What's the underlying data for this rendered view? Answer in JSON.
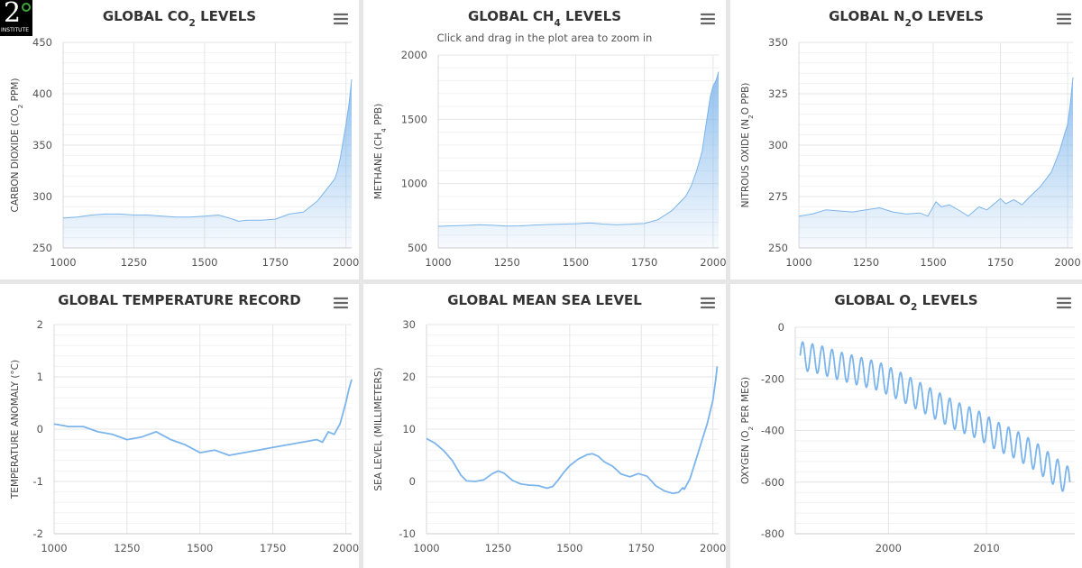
{
  "logo": {
    "number": "2",
    "text": "INSTITUTE"
  },
  "menu_icon": "hamburger-menu-icon",
  "colors": {
    "line": "#7cb5ec",
    "grid": "#e6e6e6",
    "background": "#ffffff"
  },
  "chart_data": [
    {
      "type": "area",
      "title_pre": "GLOBAL CO",
      "title_sub": "2",
      "title_post": " LEVELS",
      "subtitle": "",
      "ylabel_pre": "CARBON DIOXIDE (CO",
      "ylabel_sub": "2",
      "ylabel_post": " PPM)",
      "xlim": [
        1000,
        2020
      ],
      "ylim": [
        250,
        450
      ],
      "xticks": [
        1000,
        1250,
        1500,
        1750,
        2000
      ],
      "yticks": [
        250,
        300,
        350,
        400,
        450
      ],
      "x": [
        1000,
        1050,
        1100,
        1150,
        1200,
        1250,
        1300,
        1350,
        1400,
        1450,
        1500,
        1550,
        1600,
        1620,
        1650,
        1700,
        1750,
        1800,
        1850,
        1900,
        1920,
        1940,
        1960,
        1970,
        1980,
        1990,
        2000,
        2010,
        2020
      ],
      "y": [
        279,
        280,
        282,
        283,
        283,
        282,
        282,
        281,
        280,
        280,
        281,
        282,
        278,
        276,
        277,
        277,
        278,
        283,
        285,
        296,
        303,
        310,
        317,
        325,
        338,
        354,
        370,
        389,
        414
      ]
    },
    {
      "type": "area",
      "title_pre": "GLOBAL CH",
      "title_sub": "4",
      "title_post": " LEVELS",
      "subtitle": "Click and drag in the plot area to zoom in",
      "ylabel_pre": "METHANE (CH",
      "ylabel_sub": "4",
      "ylabel_post": " PPB)",
      "xlim": [
        1000,
        2020
      ],
      "ylim": [
        500,
        2000
      ],
      "xticks": [
        1000,
        1250,
        1500,
        1750,
        2000
      ],
      "yticks": [
        500,
        1000,
        1500,
        2000
      ],
      "x": [
        1000,
        1050,
        1100,
        1150,
        1200,
        1250,
        1300,
        1350,
        1400,
        1450,
        1500,
        1550,
        1600,
        1650,
        1700,
        1750,
        1800,
        1850,
        1900,
        1920,
        1940,
        1960,
        1970,
        1980,
        1990,
        2000,
        2010,
        2020
      ],
      "y": [
        668,
        672,
        675,
        680,
        676,
        670,
        672,
        678,
        682,
        685,
        688,
        694,
        686,
        680,
        685,
        690,
        720,
        790,
        900,
        980,
        1100,
        1250,
        1400,
        1540,
        1680,
        1760,
        1800,
        1870
      ]
    },
    {
      "type": "area",
      "title_pre": "GLOBAL N",
      "title_sub": "2",
      "title_post": "O LEVELS",
      "subtitle": "",
      "ylabel_pre": "NITROUS OXIDE (N",
      "ylabel_sub": "2",
      "ylabel_post": "O PPB)",
      "xlim": [
        1000,
        2020
      ],
      "ylim": [
        250,
        350
      ],
      "xticks": [
        1000,
        1250,
        1500,
        1750,
        2000
      ],
      "yticks": [
        250,
        275,
        300,
        325,
        350
      ],
      "x": [
        1000,
        1050,
        1100,
        1150,
        1200,
        1250,
        1300,
        1350,
        1400,
        1450,
        1480,
        1510,
        1530,
        1560,
        1600,
        1630,
        1670,
        1700,
        1750,
        1770,
        1800,
        1830,
        1860,
        1900,
        1940,
        1970,
        1990,
        2000,
        2010,
        2020
      ],
      "y": [
        265.5,
        266.5,
        268.5,
        268,
        267.5,
        268.5,
        269.5,
        267.5,
        266.5,
        267,
        265.5,
        272.5,
        270,
        271,
        268,
        265.5,
        270,
        268.5,
        274,
        271.5,
        273.5,
        271,
        275,
        280,
        287,
        297,
        306,
        310,
        320,
        333
      ]
    },
    {
      "type": "line",
      "title": "GLOBAL TEMPERATURE RECORD",
      "subtitle": "",
      "ylabel": "TEMPERATURE ANOMALY (°C)",
      "xlim": [
        1000,
        2020
      ],
      "ylim": [
        -2,
        2
      ],
      "xticks": [
        1000,
        1250,
        1500,
        1750,
        2000
      ],
      "yticks": [
        -2,
        -1,
        0,
        1,
        2
      ],
      "x": [
        1000,
        1050,
        1100,
        1150,
        1200,
        1250,
        1300,
        1350,
        1400,
        1450,
        1500,
        1550,
        1600,
        1650,
        1700,
        1750,
        1800,
        1850,
        1900,
        1920,
        1940,
        1960,
        1980,
        1990,
        2000,
        2010,
        2020
      ],
      "y": [
        0.1,
        0.05,
        0.05,
        -0.05,
        -0.1,
        -0.2,
        -0.15,
        -0.05,
        -0.2,
        -0.3,
        -0.45,
        -0.4,
        -0.5,
        -0.45,
        -0.4,
        -0.35,
        -0.3,
        -0.25,
        -0.2,
        -0.25,
        -0.05,
        -0.1,
        0.1,
        0.3,
        0.5,
        0.75,
        0.95
      ]
    },
    {
      "type": "line",
      "title": "GLOBAL MEAN SEA LEVEL",
      "subtitle": "",
      "ylabel": "SEA LEVEL (MILLIMETERS)",
      "xlim": [
        1000,
        2020
      ],
      "ylim": [
        -10,
        30
      ],
      "xticks": [
        1000,
        1250,
        1500,
        1750,
        2000
      ],
      "yticks": [
        -10,
        0,
        10,
        20,
        30
      ],
      "x": [
        1000,
        1030,
        1060,
        1090,
        1120,
        1140,
        1170,
        1200,
        1230,
        1250,
        1270,
        1300,
        1330,
        1360,
        1390,
        1420,
        1440,
        1460,
        1480,
        1500,
        1530,
        1560,
        1580,
        1600,
        1620,
        1650,
        1680,
        1710,
        1740,
        1770,
        1800,
        1830,
        1860,
        1880,
        1895,
        1900,
        1920,
        1940,
        1960,
        1980,
        2000,
        2010,
        2015
      ],
      "y": [
        8.2,
        7.3,
        5.9,
        4.0,
        1.2,
        0.1,
        0.0,
        0.3,
        1.5,
        2.0,
        1.6,
        0.2,
        -0.5,
        -0.7,
        -0.8,
        -1.3,
        -1.0,
        0.3,
        1.8,
        3.0,
        4.3,
        5.1,
        5.3,
        4.8,
        3.8,
        2.9,
        1.4,
        0.9,
        1.5,
        1.0,
        -0.8,
        -1.8,
        -2.3,
        -2.1,
        -1.2,
        -1.5,
        0.5,
        4.0,
        7.5,
        11.0,
        15.5,
        19.5,
        22.0
      ]
    },
    {
      "type": "line",
      "title_pre": "GLOBAL O",
      "title_sub": "2",
      "title_post": " LEVELS",
      "subtitle": "",
      "ylabel_pre": "OXYGEN (O",
      "ylabel_sub": "2",
      "ylabel_post": " PER MEG)",
      "xlim": [
        1990.5,
        2019
      ],
      "ylim": [
        -800,
        0
      ],
      "xticks": [
        2000,
        2010
      ],
      "yticks": [
        -800,
        -600,
        -400,
        -200,
        0
      ],
      "seasonal_amplitude": 55,
      "x": [
        1991,
        1993,
        1995,
        1997,
        1999,
        2001,
        2003,
        2005,
        2007,
        2009,
        2011,
        2013,
        2015,
        2017,
        2018.5
      ],
      "y": [
        -110,
        -125,
        -150,
        -170,
        -190,
        -225,
        -265,
        -305,
        -345,
        -375,
        -420,
        -455,
        -500,
        -560,
        -600
      ]
    }
  ]
}
